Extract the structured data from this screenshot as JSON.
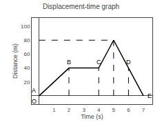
{
  "chart_data": {
    "type": "line",
    "title": "Displacement-time graph",
    "xlabel": "Time (s)",
    "ylabel": "Distance (m)",
    "x": [
      0,
      2,
      4,
      5,
      6,
      7
    ],
    "values": [
      0,
      40,
      40,
      80,
      40,
      0
    ],
    "color": "black",
    "xlim": [
      -0.5,
      7.6
    ],
    "ylim": [
      -12,
      112
    ],
    "xticks": [
      1,
      2,
      3,
      4,
      5,
      6,
      7
    ],
    "yticks": [
      20,
      40,
      60,
      80,
      100
    ],
    "grid": false,
    "annotations": [
      {
        "text": "A",
        "x": 0,
        "y": 0
      },
      {
        "text": "B",
        "x": 2,
        "y": 40
      },
      {
        "text": "C",
        "x": 4,
        "y": 40
      },
      {
        "text": "D",
        "x": 6,
        "y": 40
      },
      {
        "text": "E",
        "x": 7,
        "y": 0
      }
    ],
    "origin_label": "O",
    "dashed_lines": {
      "color": "black",
      "line_style": "dashed",
      "segments": [
        {
          "x1": 0,
          "y1": 80,
          "x2": 5,
          "y2": 80
        },
        {
          "x1": 2,
          "y1": 0,
          "x2": 2,
          "y2": 40
        },
        {
          "x1": 4,
          "y1": 0,
          "x2": 4,
          "y2": 40
        },
        {
          "x1": 5,
          "y1": 0,
          "x2": 5,
          "y2": 80
        },
        {
          "x1": 6,
          "y1": 0,
          "x2": 6,
          "y2": 40
        }
      ]
    }
  }
}
